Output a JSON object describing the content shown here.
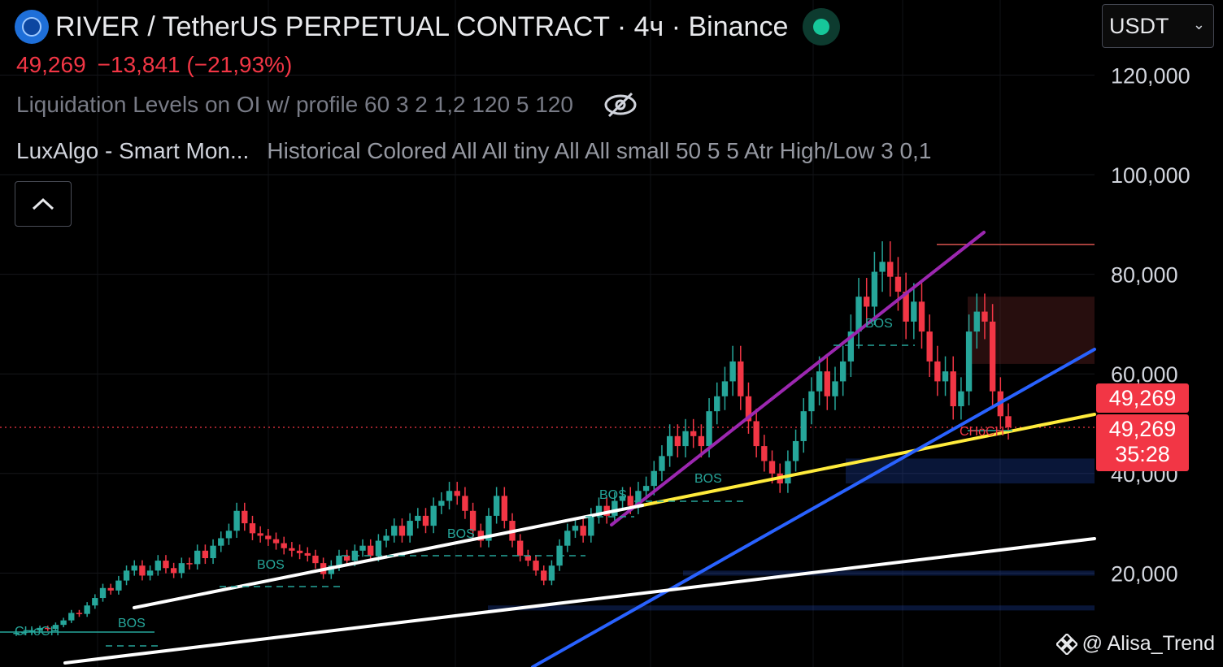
{
  "header": {
    "title": "RIVER / TetherUS PERPETUAL CONTRACT · 4ч · Binance",
    "price": "49,269",
    "change": "−13,841 (−21,93%)",
    "indicator1": "Liquidation Levels on OI w/ profile 60 3 2 1,2 120 5 120",
    "indicator2_name": "LuxAlgo - Smart Mon...",
    "indicator2_params": "Historical Colored All All tiny All All small 50 5 5 Atr High/Low 3 0,1",
    "currency": "USDT"
  },
  "price_tags": {
    "last_price": "49,269",
    "mark_price": "49,269",
    "countdown": "35:28"
  },
  "watermark": "@ Alisa_Trend",
  "colors": {
    "up": "#26a69a",
    "down": "#f23645",
    "purple": "#9c27b0",
    "yellow": "#ffeb3b",
    "blue": "#2962ff",
    "white": "#ffffff"
  },
  "chart_data": {
    "type": "candlestick",
    "y_axis": {
      "ticks": [
        "120,000",
        "100,000",
        "80,000",
        "60,000",
        "40,000",
        "20,000"
      ],
      "tick_values": [
        120000,
        100000,
        80000,
        60000,
        40000,
        20000
      ],
      "range": [
        -2000,
        135000
      ]
    },
    "last_price": 49269,
    "close_series": [
      8000,
      8200,
      8500,
      9000,
      8800,
      9600,
      10500,
      12000,
      11800,
      13500,
      15000,
      17000,
      16500,
      18500,
      20500,
      21500,
      19500,
      20500,
      22500,
      21000,
      20000,
      22000,
      21800,
      24500,
      23000,
      25500,
      27000,
      28500,
      32500,
      30000,
      28000,
      27500,
      26800,
      26000,
      25000,
      24500,
      24000,
      23500,
      22000,
      19800,
      21500,
      23500,
      22500,
      24500,
      25500,
      23500,
      26500,
      27500,
      29500,
      27500,
      30500,
      31500,
      29500,
      33500,
      34500,
      36500,
      35500,
      32500,
      28500,
      26500,
      31500,
      35500,
      30500,
      26500,
      23500,
      22500,
      20500,
      18500,
      21500,
      25500,
      28500,
      29500,
      27500,
      31500,
      33500,
      31500,
      34500,
      35500,
      33500,
      36500,
      37500,
      40500,
      43500,
      47500,
      45500,
      48500,
      47500,
      45500,
      52500,
      55500,
      58500,
      62500,
      55500,
      50500,
      45500,
      42500,
      40000,
      38000,
      42500,
      46500,
      52500,
      56500,
      60500,
      55500,
      58500,
      62500,
      68500,
      75500,
      73500,
      80500,
      82500,
      79500,
      76500,
      70500,
      74500,
      68500,
      62500,
      58500,
      60500,
      53500,
      56500,
      68500,
      72500,
      70500,
      56500,
      51500,
      49269
    ],
    "annotations": [
      "CHoCH",
      "BOS",
      "BOS",
      "BOS",
      "BOS",
      "BOS",
      "BOS",
      "CHoCH"
    ],
    "lines": [
      {
        "name": "purple channel top",
        "color": "purple"
      },
      {
        "name": "yellow trendline",
        "color": "yellow"
      },
      {
        "name": "blue trendline",
        "color": "blue"
      },
      {
        "name": "white channel top",
        "color": "white"
      },
      {
        "name": "white channel bottom",
        "color": "white"
      },
      {
        "name": "white channel lower",
        "color": "white"
      }
    ],
    "zones": [
      {
        "type": "supply",
        "from": 62000,
        "to": 75500
      },
      {
        "type": "demand",
        "from": 38000,
        "to": 43000
      },
      {
        "type": "demand",
        "from": 19500,
        "to": 20500
      },
      {
        "type": "demand",
        "from": 12500,
        "to": 13500
      }
    ],
    "high_level": 86000
  }
}
